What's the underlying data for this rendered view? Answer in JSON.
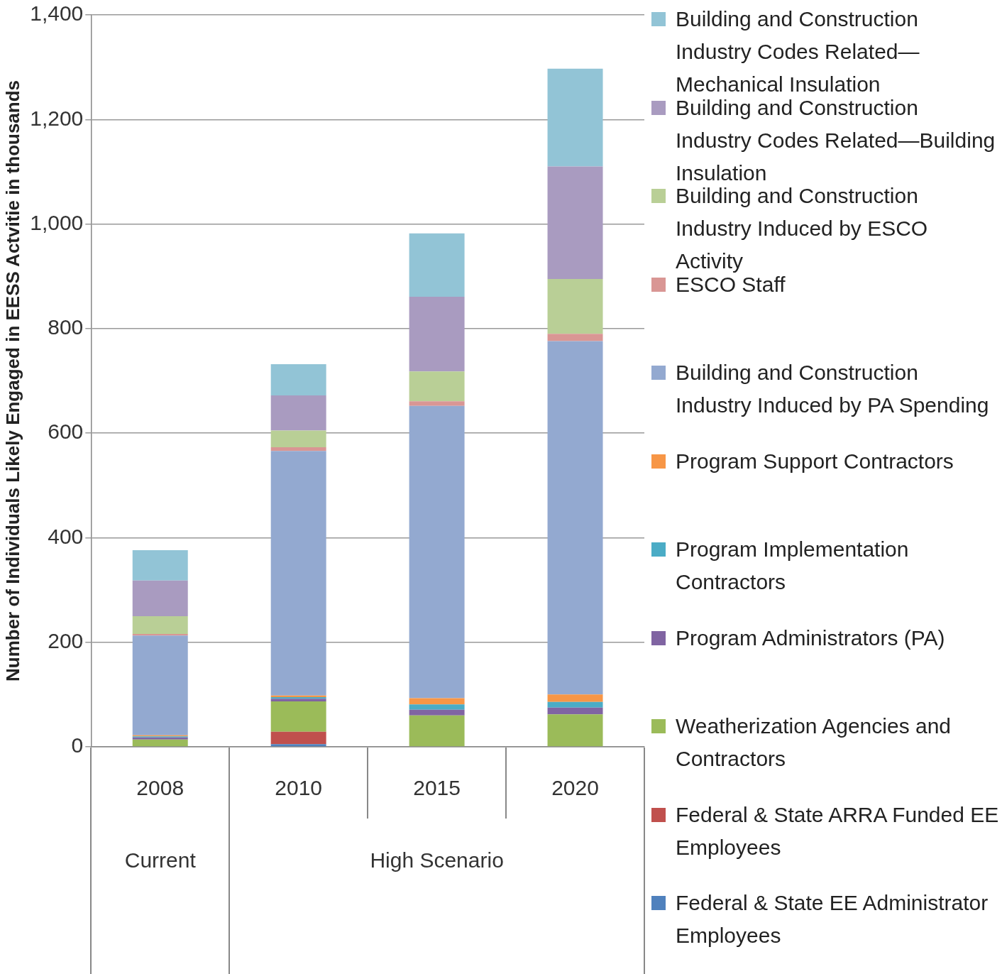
{
  "chart_data": {
    "type": "bar",
    "stacked": true,
    "ylabel": "Number of Individuals Likely Engaged in EESS Actvitie in thousands",
    "categories": [
      "2008",
      "2010",
      "2015",
      "2020"
    ],
    "ylim": [
      0,
      1400
    ],
    "yticks": [
      0,
      {
        "value": 200,
        "label": "200"
      },
      {
        "value": 400,
        "label": "400"
      },
      {
        "value": 600,
        "label": "600"
      },
      {
        "value": 800,
        "label": "800"
      },
      {
        "value": 1000,
        "label": "1,000"
      },
      {
        "value": 1200,
        "label": "1,200"
      },
      {
        "value": 1400,
        "label": "1,400"
      }
    ],
    "grid": "y",
    "legend": "right",
    "annotations": [
      "Current",
      "High Scenario"
    ],
    "series": [
      {
        "name": "Federal & State EE Administrator Employees",
        "color": "#4f81bd",
        "values": [
          0,
          5,
          0,
          0
        ]
      },
      {
        "name": "Federal & State ARRA Funded EE Employees",
        "color": "#c0504d",
        "values": [
          0,
          24,
          0,
          0
        ]
      },
      {
        "name": "Weatherization Agencies and Contractors",
        "color": "#9bbb59",
        "values": [
          14,
          58,
          60,
          62
        ]
      },
      {
        "name": "Program Administrators (PA)",
        "color": "#8064a2",
        "values": [
          4,
          5,
          11,
          13
        ]
      },
      {
        "name": "Program Implementation Contractors",
        "color": "#4bacc6",
        "values": [
          2,
          3,
          10,
          11
        ]
      },
      {
        "name": "Program Support Contractors",
        "color": "#f79646",
        "values": [
          2,
          3,
          12,
          14
        ]
      },
      {
        "name": "Building and Construction Industry Induced by PA Spending",
        "color": "#93a9d0",
        "values": [
          191,
          468,
          559,
          676
        ]
      },
      {
        "name": "ESCO Staff",
        "color": "#d99694",
        "values": [
          3,
          7,
          9,
          14
        ]
      },
      {
        "name": "Building and Construction Industry Induced by ESCO Activity",
        "color": "#b9cf96",
        "values": [
          34,
          32,
          57,
          105
        ]
      },
      {
        "name": "Building and Construction Industry Codes Related—Building Insulation",
        "color": "#a99bc0",
        "values": [
          68,
          67,
          143,
          215
        ]
      },
      {
        "name": "Building and Construction Industry Codes Related—Mechanical Insulation",
        "color": "#92c4d6",
        "values": [
          58,
          60,
          121,
          187
        ]
      }
    ]
  }
}
